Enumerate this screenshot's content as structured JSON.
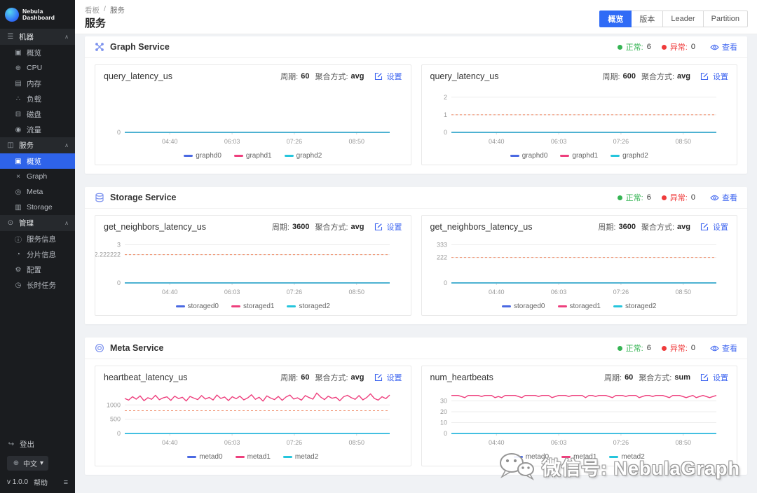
{
  "app": {
    "logo_text": "Nebula Dashboard",
    "version": "v 1.0.0",
    "help": "帮助",
    "logout": "登出",
    "language": "中文"
  },
  "header": {
    "breadcrumb_root": "看板",
    "breadcrumb_sep": "/",
    "breadcrumb_current": "服务",
    "title": "服务",
    "tabs": [
      {
        "key": "overview",
        "label": "概览",
        "active": true
      },
      {
        "key": "version",
        "label": "版本",
        "active": false
      },
      {
        "key": "leader",
        "label": "Leader",
        "active": false
      },
      {
        "key": "partition",
        "label": "Partition",
        "active": false
      }
    ]
  },
  "sidebar": {
    "sections": [
      {
        "key": "machine",
        "label": "机器",
        "icon": "☰",
        "items": [
          {
            "key": "overview",
            "label": "概览",
            "icon": "▣",
            "active": false
          },
          {
            "key": "cpu",
            "label": "CPU",
            "icon": "⊕",
            "active": false
          },
          {
            "key": "memory",
            "label": "内存",
            "icon": "▤",
            "active": false
          },
          {
            "key": "load",
            "label": "负载",
            "icon": "∴",
            "active": false
          },
          {
            "key": "disk",
            "label": "磁盘",
            "icon": "⊟",
            "active": false
          },
          {
            "key": "traffic",
            "label": "流量",
            "icon": "◉",
            "active": false
          }
        ]
      },
      {
        "key": "service",
        "label": "服务",
        "icon": "◫",
        "items": [
          {
            "key": "service-overview",
            "label": "概览",
            "icon": "▣",
            "active": true
          },
          {
            "key": "graph",
            "label": "Graph",
            "icon": "×",
            "active": false
          },
          {
            "key": "meta",
            "label": "Meta",
            "icon": "◎",
            "active": false
          },
          {
            "key": "storage",
            "label": "Storage",
            "icon": "▥",
            "active": false
          }
        ]
      },
      {
        "key": "management",
        "label": "管理",
        "icon": "⊙",
        "items": [
          {
            "key": "service-info",
            "label": "服务信息",
            "icon": "ⓘ",
            "active": false
          },
          {
            "key": "partition-info",
            "label": "分片信息",
            "icon": "◔",
            "active": false
          },
          {
            "key": "config",
            "label": "配置",
            "icon": "⚙",
            "active": false
          },
          {
            "key": "long-tasks",
            "label": "长时任务",
            "icon": "◷",
            "active": false
          }
        ]
      }
    ],
    "logout_icon": "↪",
    "globe_icon": "⊕",
    "lang_caret": "▾",
    "burger_icon": "≡",
    "section_caret": "∧"
  },
  "labels": {
    "normal": "正常:",
    "abnormal": "异常:",
    "view": "查看",
    "period": "周期:",
    "agg": "聚合方式:",
    "settings": "设置"
  },
  "colors": {
    "accent": "#2f6bf6",
    "link": "#3e65f0",
    "green": "#35b453",
    "red": "#ef3b3b",
    "threshold": "#ef8a65",
    "series_blue": "#4a69e2",
    "series_pink": "#ee3f7d",
    "series_cyan": "#25c5dc"
  },
  "panels": [
    {
      "key": "graph-service",
      "title": "Graph Service",
      "icon": "graph",
      "normal": "6",
      "abnormal": "0",
      "charts": [
        0,
        1
      ]
    },
    {
      "key": "storage-service",
      "title": "Storage Service",
      "icon": "storage",
      "normal": "6",
      "abnormal": "0",
      "charts": [
        2,
        3
      ]
    },
    {
      "key": "meta-service",
      "title": "Meta Service",
      "icon": "meta",
      "normal": "6",
      "abnormal": "0",
      "charts": [
        4,
        5
      ]
    }
  ],
  "watermark": {
    "text": "微信号: NebulaGraph",
    "icon": "wechat"
  },
  "chart_data": [
    {
      "type": "line",
      "title": "query_latency_us",
      "period": "60",
      "agg": "avg",
      "xlabels": [
        "04:40",
        "06:03",
        "07:26",
        "08:50"
      ],
      "ylim": [
        0,
        1
      ],
      "yticks": [
        {
          "v": 0,
          "label": "0"
        }
      ],
      "threshold": null,
      "series": [
        {
          "name": "graphd0",
          "color": "#4a69e2",
          "values": [
            0,
            0
          ]
        },
        {
          "name": "graphd1",
          "color": "#ee3f7d",
          "values": [
            0,
            0
          ]
        },
        {
          "name": "graphd2",
          "color": "#25c5dc",
          "values": [
            0,
            0
          ]
        }
      ]
    },
    {
      "type": "line",
      "title": "query_latency_us",
      "period": "600",
      "agg": "avg",
      "xlabels": [
        "04:40",
        "06:03",
        "07:26",
        "08:50"
      ],
      "ylim": [
        0,
        2.35
      ],
      "yticks": [
        {
          "v": 0,
          "label": "0"
        },
        {
          "v": 1,
          "label": "1"
        },
        {
          "v": 2,
          "label": "2"
        }
      ],
      "threshold": 1,
      "series": [
        {
          "name": "graphd0",
          "color": "#4a69e2",
          "values": [
            0,
            0
          ]
        },
        {
          "name": "graphd1",
          "color": "#ee3f7d",
          "values": [
            0,
            0
          ]
        },
        {
          "name": "graphd2",
          "color": "#25c5dc",
          "values": [
            0,
            0
          ]
        }
      ]
    },
    {
      "type": "line",
      "title": "get_neighbors_latency_us",
      "period": "3600",
      "agg": "avg",
      "xlabels": [
        "04:40",
        "06:03",
        "07:26",
        "08:50"
      ],
      "ylim": [
        0,
        3.25
      ],
      "yticks": [
        {
          "v": 0,
          "label": "0"
        },
        {
          "v": 2.222222,
          "label": "2.222222"
        },
        {
          "v": 3,
          "label": "3"
        }
      ],
      "threshold": 2.222222,
      "series": [
        {
          "name": "storaged0",
          "color": "#4a69e2",
          "values": [
            0,
            0
          ]
        },
        {
          "name": "storaged1",
          "color": "#ee3f7d",
          "values": [
            0,
            0
          ]
        },
        {
          "name": "storaged2",
          "color": "#25c5dc",
          "values": [
            0,
            0
          ]
        }
      ]
    },
    {
      "type": "line",
      "title": "get_neighbors_latency_us",
      "period": "3600",
      "agg": "avg",
      "xlabels": [
        "04:40",
        "06:03",
        "07:26",
        "08:50"
      ],
      "ylim": [
        0,
        360
      ],
      "yticks": [
        {
          "v": 0,
          "label": "0"
        },
        {
          "v": 222,
          "label": "222"
        },
        {
          "v": 333,
          "label": "333"
        }
      ],
      "threshold": 222,
      "series": [
        {
          "name": "storaged0",
          "color": "#4a69e2",
          "values": [
            0,
            0
          ]
        },
        {
          "name": "storaged1",
          "color": "#ee3f7d",
          "values": [
            0,
            0
          ]
        },
        {
          "name": "storaged2",
          "color": "#25c5dc",
          "values": [
            0,
            0
          ]
        }
      ]
    },
    {
      "type": "line",
      "title": "heartbeat_latency_us",
      "period": "60",
      "agg": "avg",
      "xlabels": [
        "04:40",
        "06:03",
        "07:26",
        "08:50"
      ],
      "ylim": [
        0,
        1450
      ],
      "yticks": [
        {
          "v": 0,
          "label": "0"
        },
        {
          "v": 500,
          "label": "500"
        },
        {
          "v": 1000,
          "label": "1000"
        }
      ],
      "threshold": 800,
      "series": [
        {
          "name": "metad0",
          "color": "#4a69e2",
          "values": [
            0,
            0
          ]
        },
        {
          "name": "metad1",
          "color": "#ee3f7d",
          "values": [
            1230,
            1170,
            1290,
            1205,
            1320,
            1150,
            1255,
            1200,
            1340,
            1185,
            1250,
            1285,
            1160,
            1310,
            1225,
            1270,
            1140,
            1300,
            1240,
            1190,
            1330,
            1210,
            1265,
            1175,
            1350,
            1230,
            1280,
            1155,
            1290,
            1220,
            1310,
            1180,
            1245,
            1360,
            1200,
            1270,
            1135,
            1320,
            1240,
            1190,
            1300,
            1165,
            1280,
            1350,
            1210,
            1250,
            1170,
            1330,
            1260,
            1205,
            1420,
            1280,
            1190,
            1310,
            1235,
            1270,
            1150,
            1290,
            1340,
            1255,
            1200,
            1330,
            1180,
            1260,
            1390,
            1230,
            1170,
            1290,
            1225,
            1350
          ]
        },
        {
          "name": "metad2",
          "color": "#25c5dc",
          "values": [
            0,
            0
          ]
        }
      ]
    },
    {
      "type": "line",
      "title": "num_heartbeats",
      "period": "60",
      "agg": "sum",
      "xlabels": [
        "04:40",
        "06:03",
        "07:26",
        "08:50"
      ],
      "ylim": [
        0,
        38
      ],
      "yticks": [
        {
          "v": 0,
          "label": "0"
        },
        {
          "v": 10,
          "label": "10"
        },
        {
          "v": 20,
          "label": "20"
        },
        {
          "v": 30,
          "label": "30"
        }
      ],
      "threshold": null,
      "series": [
        {
          "name": "metad0",
          "color": "#4a69e2",
          "values": [
            0,
            0
          ]
        },
        {
          "name": "metad1",
          "color": "#ee3f7d",
          "values": [
            35,
            35,
            35,
            34,
            33,
            35,
            35,
            35,
            35,
            34,
            35,
            35,
            35,
            33,
            34,
            33,
            35,
            35,
            35,
            35,
            34,
            33,
            35,
            35,
            35,
            35,
            34,
            35,
            35,
            35,
            33,
            34,
            35,
            35,
            35,
            34,
            35,
            35,
            35,
            35,
            33,
            35,
            35,
            34,
            35,
            35,
            35,
            34,
            33,
            35,
            35,
            35,
            34,
            35,
            35,
            35,
            33,
            34,
            35,
            35,
            34,
            35,
            35,
            35,
            34,
            33,
            35,
            35,
            35,
            34,
            33,
            34,
            35,
            33,
            34,
            35,
            34,
            33,
            34,
            35
          ]
        },
        {
          "name": "metad2",
          "color": "#25c5dc",
          "values": [
            0,
            0
          ]
        }
      ]
    }
  ]
}
